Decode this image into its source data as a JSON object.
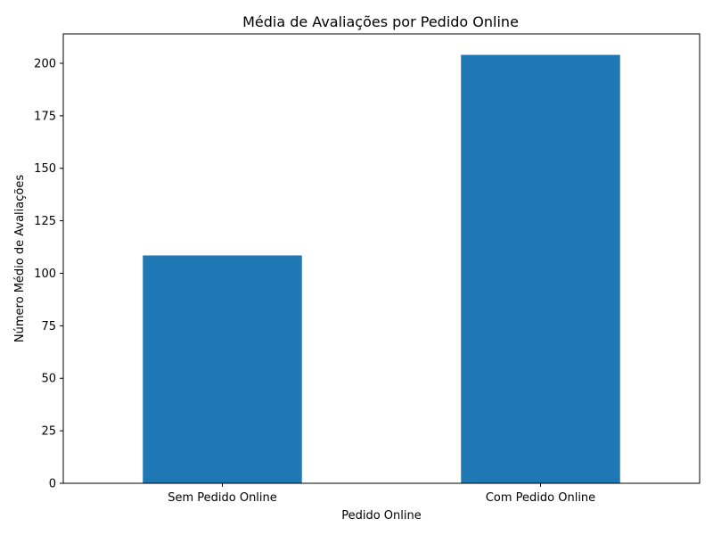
{
  "chart_data": {
    "type": "bar",
    "title": "Média de Avaliações por Pedido Online",
    "xlabel": "Pedido Online",
    "ylabel": "Número Médio de Avaliações",
    "categories": [
      "Sem Pedido Online",
      "Com Pedido Online"
    ],
    "values": [
      108.5,
      204
    ],
    "ylim": [
      0,
      214
    ],
    "yticks": [
      0,
      25,
      50,
      75,
      100,
      125,
      150,
      175,
      200
    ],
    "grid": false,
    "bar_color": "#1f77b4"
  }
}
